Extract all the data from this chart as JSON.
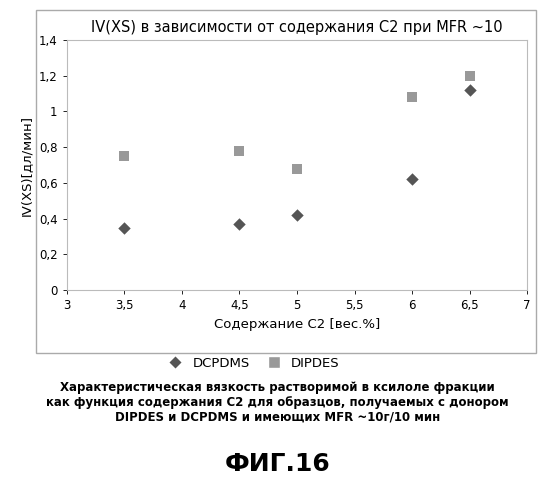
{
  "title": "IV(XS) в зависимости от содержания C2 при MFR ~10",
  "xlabel": "Содержание C2 [вес.%]",
  "ylabel": "IV(XS)[дл/мин]",
  "xlim": [
    3,
    7
  ],
  "ylim": [
    0,
    1.4
  ],
  "xticks": [
    3,
    3.5,
    4,
    4.5,
    5,
    5.5,
    6,
    6.5,
    7
  ],
  "yticks": [
    0,
    0.2,
    0.4,
    0.6,
    0.8,
    1.0,
    1.2,
    1.4
  ],
  "xtick_labels": [
    "3",
    "3,5",
    "4",
    "4,5",
    "5",
    "5,5",
    "6",
    "6,5",
    "7"
  ],
  "ytick_labels": [
    "0",
    "0,2",
    "0,4",
    "0,6",
    "0,8",
    "1",
    "1,2",
    "1,4"
  ],
  "dcpdms_x": [
    3.5,
    4.5,
    5.0,
    6.0,
    6.5
  ],
  "dcpdms_y": [
    0.35,
    0.37,
    0.42,
    0.62,
    1.12
  ],
  "dipdes_x": [
    3.5,
    4.5,
    5.0,
    6.0,
    6.5
  ],
  "dipdes_y": [
    0.75,
    0.78,
    0.68,
    1.08,
    1.2
  ],
  "dcpdms_color": "#555555",
  "dipdes_color": "#999999",
  "legend_dcpdms": "DCPDMS",
  "legend_dipdes": "DIPDES",
  "caption_line1": "Характеристическая вязкость растворимой в ксилоле фракции",
  "caption_line2": "как функция содержания C2 для образцов, получаемых с донором",
  "caption_line3": "DIPDES и DCPDMS и имеющих MFR ~10г/10 мин",
  "figure_label": "ФИГ.16",
  "background_color": "#ffffff",
  "plot_bg_color": "#ffffff",
  "border_color": "#aaaaaa"
}
